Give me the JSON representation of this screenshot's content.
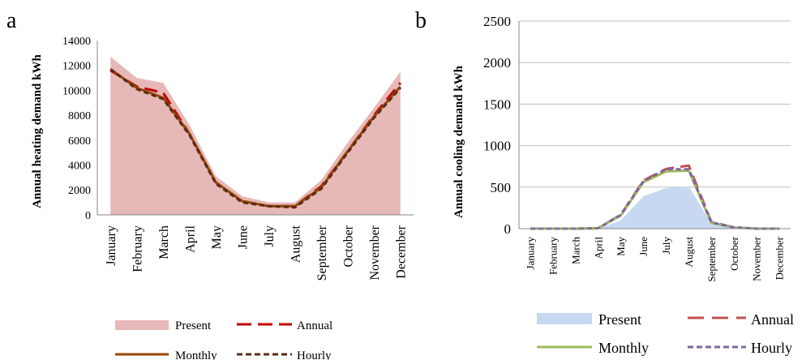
{
  "months": [
    "January",
    "February",
    "March",
    "April",
    "May",
    "June",
    "July",
    "August",
    "September",
    "October",
    "November",
    "December"
  ],
  "chart_data": [
    {
      "panel_label": "a",
      "type": "area",
      "ylabel": "Annual heating demand kWh",
      "xlabel": "",
      "ylim": [
        0,
        14000
      ],
      "yticks": [
        0,
        2000,
        4000,
        6000,
        8000,
        10000,
        12000,
        14000
      ],
      "grid": false,
      "legend_position": "bottom",
      "series": [
        {
          "name": "Present",
          "kind": "area",
          "color": "#e6b8b7",
          "values": [
            12700,
            11000,
            10600,
            7200,
            3100,
            1500,
            1000,
            1000,
            2800,
            5800,
            8600,
            11500
          ]
        },
        {
          "name": "Annual",
          "kind": "line",
          "dash": "long-dash",
          "color": "#c00000",
          "values": [
            11600,
            10300,
            9800,
            6500,
            2600,
            1100,
            700,
            700,
            2300,
            5100,
            8000,
            10600
          ]
        },
        {
          "name": "Monthly",
          "kind": "line",
          "dash": "solid",
          "color": "#974706",
          "values": [
            11700,
            10200,
            9400,
            6500,
            2600,
            1100,
            700,
            700,
            2200,
            5100,
            7900,
            10300
          ]
        },
        {
          "name": "Hourly",
          "kind": "line",
          "dash": "short-dash",
          "color": "#5a2d16",
          "values": [
            11700,
            10100,
            9300,
            6400,
            2500,
            1000,
            700,
            600,
            2100,
            5000,
            7800,
            10200
          ]
        }
      ]
    },
    {
      "panel_label": "b",
      "type": "area",
      "ylabel": "Annual cooling demand kWh",
      "xlabel": "",
      "ylim": [
        0,
        2500
      ],
      "yticks": [
        0,
        500,
        1000,
        1500,
        2000,
        2500
      ],
      "grid": true,
      "legend_position": "bottom",
      "series": [
        {
          "name": "Present",
          "kind": "area",
          "color": "#c6d9f1",
          "values": [
            0,
            0,
            0,
            0,
            100,
            390,
            490,
            510,
            60,
            10,
            0,
            0
          ]
        },
        {
          "name": "Annual",
          "kind": "line",
          "dash": "long-dash",
          "color": "#c0504d",
          "values": [
            0,
            0,
            0,
            5,
            170,
            580,
            720,
            760,
            80,
            15,
            0,
            0
          ]
        },
        {
          "name": "Monthly",
          "kind": "line",
          "dash": "solid",
          "color": "#9bbb59",
          "values": [
            0,
            0,
            0,
            5,
            160,
            560,
            690,
            700,
            70,
            15,
            0,
            0
          ]
        },
        {
          "name": "Hourly",
          "kind": "line",
          "dash": "short-dash",
          "color": "#8064a2",
          "values": [
            0,
            0,
            0,
            5,
            165,
            575,
            715,
            715,
            75,
            15,
            0,
            0
          ]
        }
      ]
    }
  ]
}
